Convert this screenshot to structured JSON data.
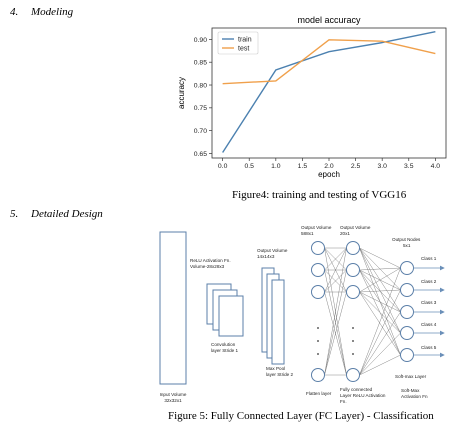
{
  "section4": {
    "number": "4.",
    "title": "Modeling"
  },
  "section5": {
    "number": "5.",
    "title": "Detailed Design"
  },
  "figure4": {
    "caption": "Figure4: training and testing of VGG16"
  },
  "figure5": {
    "caption": "Figure 5: Fully Connected Layer (FC Layer) -    Classification"
  },
  "chart_data": {
    "type": "line",
    "title": "model accuracy",
    "xlabel": "epoch",
    "ylabel": "accuracy",
    "x": [
      0,
      1,
      2,
      3,
      4
    ],
    "xticks": [
      "0.0",
      "0.5",
      "1.0",
      "1.5",
      "2.0",
      "2.5",
      "3.0",
      "3.5",
      "4.0"
    ],
    "yticks": [
      "0.65",
      "0.70",
      "0.75",
      "0.80",
      "0.85",
      "0.90"
    ],
    "xlim": [
      -0.2,
      4.2
    ],
    "ylim": [
      0.64,
      0.925
    ],
    "legend": "top-left",
    "grid": false,
    "series": [
      {
        "name": "train",
        "color": "#4c81b0",
        "values": [
          0.652,
          0.833,
          0.873,
          0.893,
          0.917
        ]
      },
      {
        "name": "test",
        "color": "#f0a04b",
        "values": [
          0.803,
          0.809,
          0.899,
          0.896,
          0.869
        ]
      }
    ]
  },
  "diagram": {
    "input_label": [
      "Input Volume",
      "32x32x1"
    ],
    "relu_label": [
      "ReLU Activation Fn.",
      "Volume-28x28x3"
    ],
    "conv_label": [
      "Convolution",
      "layer Stride 1"
    ],
    "output_volume_1": [
      "Output Volume",
      "14x14x3"
    ],
    "maxpool_label": [
      "Max Pool",
      "layer Stride  2"
    ],
    "output_volume_2": [
      "Output Volume",
      "588x1"
    ],
    "flatten_label": "Flatten layer",
    "output_volume_3": [
      "Output Volume",
      "20x1"
    ],
    "fc_label": [
      "Fully connected",
      "Layer ReLU Activation",
      "Fn."
    ],
    "output_nodes": [
      "Output Nodes",
      "5x1"
    ],
    "classes": [
      "Class 1",
      "Class 2",
      "Class 3",
      "Class 4",
      "Class 5"
    ],
    "softmax_layer": "Soft-max Layer",
    "softmax_fn": [
      "Soft-Max",
      "Activation Fn"
    ]
  }
}
